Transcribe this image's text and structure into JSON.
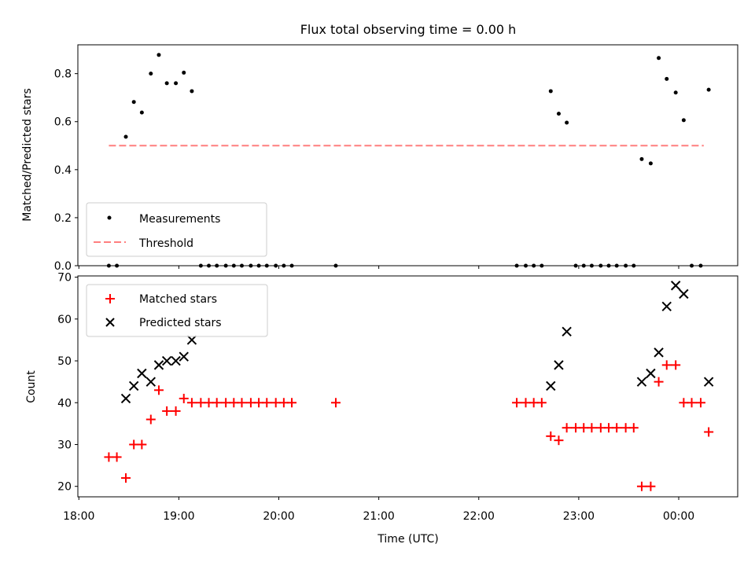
{
  "chart_data": {
    "title": "Flux total observing time = 0.00 h",
    "xlabel": "Time (UTC)",
    "x_tick_labels": [
      "18:00",
      "19:00",
      "20:00",
      "21:00",
      "22:00",
      "23:00",
      "00:00"
    ],
    "x_tick_hours": [
      18,
      19,
      20,
      21,
      22,
      23,
      24
    ],
    "xlim_hours": [
      17.99,
      24.59
    ],
    "x_values_hours": [
      18.3,
      18.38,
      18.47,
      18.55,
      18.63,
      18.72,
      18.8,
      18.88,
      18.97,
      19.05,
      19.13,
      19.22,
      19.3,
      19.38,
      19.47,
      19.55,
      19.63,
      19.72,
      19.8,
      19.88,
      19.97,
      20.05,
      20.13,
      20.57,
      22.38,
      22.47,
      22.55,
      22.63,
      22.72,
      22.8,
      22.88,
      22.97,
      23.05,
      23.13,
      23.22,
      23.3,
      23.38,
      23.47,
      23.55,
      23.63,
      23.72,
      23.8,
      23.88,
      23.97,
      24.05,
      24.13,
      24.22,
      24.3
    ],
    "panels": [
      {
        "type": "scatter",
        "ylabel": "Matched/Predicted stars",
        "ylim": [
          0,
          0.92
        ],
        "y_ticks": [
          0.0,
          0.2,
          0.4,
          0.6,
          0.8
        ],
        "y_tick_labels": [
          "0.0",
          "0.2",
          "0.4",
          "0.6",
          "0.8"
        ],
        "legend_position": "lower-left",
        "series": [
          {
            "name": "Measurements",
            "marker": "dot",
            "color": "#000000",
            "values": [
              0,
              0,
              0.537,
              0.682,
              0.638,
              0.8,
              0.878,
              0.76,
              0.76,
              0.804,
              0.727,
              0,
              0,
              0,
              0,
              0,
              0,
              0,
              0,
              0,
              0,
              0,
              0,
              0,
              0,
              0,
              0,
              0,
              0.727,
              0.633,
              0.596,
              0,
              0,
              0,
              0,
              0,
              0,
              0,
              0,
              0.444,
              0.426,
              0.865,
              0.778,
              0.721,
              0.606,
              0,
              0,
              0.733
            ]
          }
        ],
        "threshold": {
          "name": "Threshold",
          "value": 0.5,
          "x_range_hours": [
            18.3,
            24.25
          ],
          "color": "#ff7f7f"
        }
      },
      {
        "type": "scatter",
        "ylabel": "Count",
        "ylim": [
          17.5,
          70.3
        ],
        "y_ticks": [
          20,
          30,
          40,
          50,
          60,
          70
        ],
        "y_tick_labels": [
          "20",
          "30",
          "40",
          "50",
          "60",
          "70"
        ],
        "legend_position": "upper-left",
        "series": [
          {
            "name": "Matched stars",
            "marker": "plus",
            "color": "#ff0000",
            "values": [
              27,
              27,
              22,
              30,
              30,
              36,
              43,
              38,
              38,
              41,
              40,
              40,
              40,
              40,
              40,
              40,
              40,
              40,
              40,
              40,
              40,
              40,
              40,
              40,
              40,
              40,
              40,
              40,
              32,
              31,
              34,
              34,
              34,
              34,
              34,
              34,
              34,
              34,
              34,
              20,
              20,
              45,
              49,
              49,
              40,
              40,
              40,
              33
            ]
          },
          {
            "name": "Predicted stars",
            "marker": "x",
            "color": "#000000",
            "values": [
              null,
              null,
              41,
              44,
              47,
              45,
              49,
              50,
              50,
              51,
              55,
              null,
              null,
              null,
              null,
              null,
              null,
              null,
              null,
              null,
              null,
              null,
              null,
              null,
              null,
              null,
              null,
              null,
              44,
              49,
              57,
              null,
              null,
              null,
              null,
              null,
              null,
              null,
              null,
              45,
              47,
              52,
              63,
              68,
              66,
              null,
              null,
              45
            ]
          }
        ]
      }
    ]
  }
}
